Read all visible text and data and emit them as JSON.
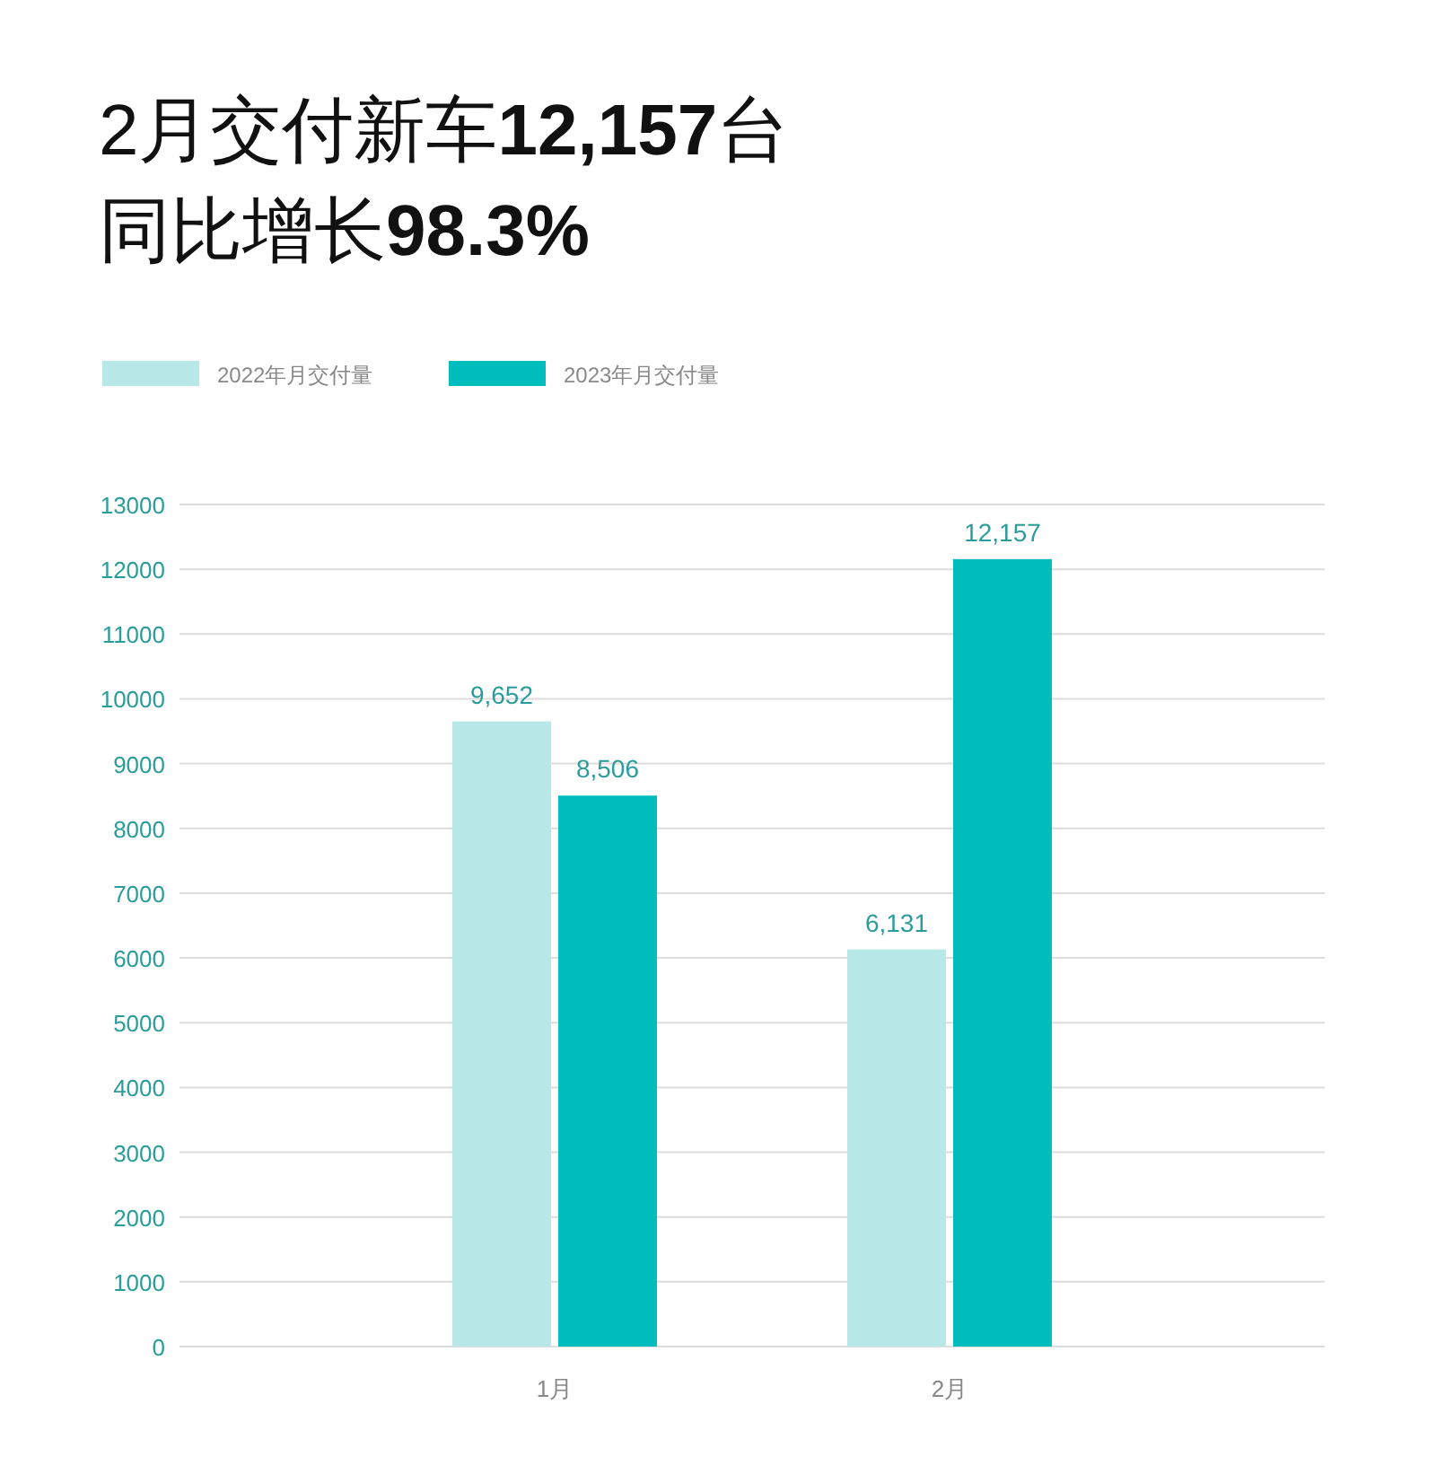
{
  "chart_data": {
    "type": "bar",
    "title": "2月交付新车12,157台",
    "subtitle": "同比增长98.3%",
    "categories": [
      "1月",
      "2月"
    ],
    "series": [
      {
        "name": "2022年月交付量",
        "color": "#b9e8e8",
        "values": [
          9652,
          6131
        ],
        "value_labels": [
          "9,652",
          "6,131"
        ]
      },
      {
        "name": "2023年月交付量",
        "color": "#00bdbd",
        "values": [
          8506,
          12157
        ],
        "value_labels": [
          "8,506",
          "12,157"
        ]
      }
    ],
    "ylim": [
      0,
      13000
    ],
    "yticks": [
      0,
      1000,
      2000,
      3000,
      4000,
      5000,
      6000,
      7000,
      8000,
      9000,
      10000,
      11000,
      12000,
      13000
    ],
    "grid": "y",
    "legend": "top left"
  }
}
